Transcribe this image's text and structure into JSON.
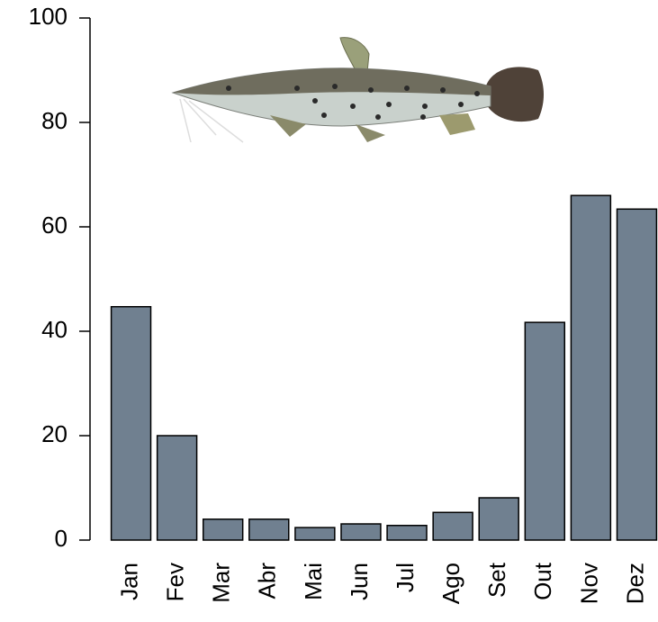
{
  "chart_data": {
    "type": "bar",
    "categories": [
      "Jan",
      "Fev",
      "Mar",
      "Abr",
      "Mai",
      "Jun",
      "Jul",
      "Ago",
      "Set",
      "Out",
      "Nov",
      "Dez"
    ],
    "values": [
      44.7,
      20,
      4,
      4,
      2.4,
      3.1,
      2.8,
      5.3,
      8.1,
      41.7,
      66,
      63.4
    ],
    "color": "#708090",
    "ylim": [
      0,
      100
    ],
    "yticks": [
      0,
      20,
      40,
      60,
      80,
      100
    ],
    "grid": false
  }
}
